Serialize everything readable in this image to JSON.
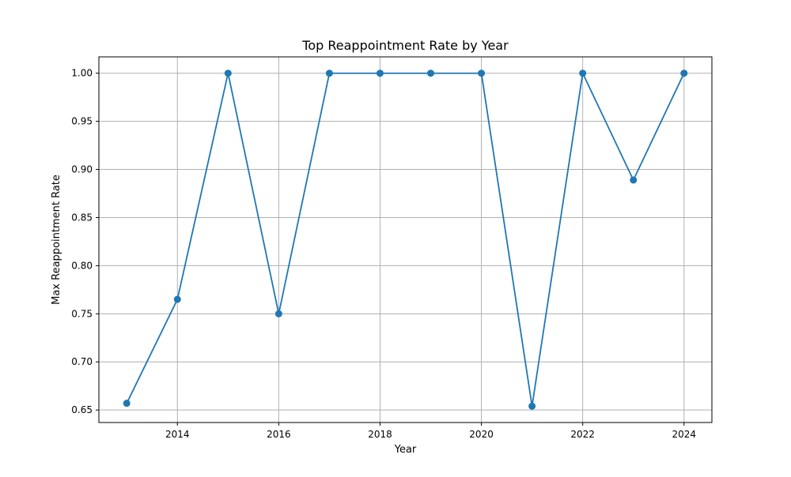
{
  "chart_data": {
    "type": "line",
    "title": "Top Reappointment Rate by Year",
    "xlabel": "Year",
    "ylabel": "Max Reappointment Rate",
    "x": [
      2013,
      2014,
      2015,
      2016,
      2017,
      2018,
      2019,
      2020,
      2021,
      2022,
      2023,
      2024
    ],
    "series": [
      {
        "values": [
          0.657,
          0.765,
          1.0,
          0.75,
          1.0,
          1.0,
          1.0,
          1.0,
          0.654,
          1.0,
          0.889,
          1.0
        ],
        "color": "#1f77b4",
        "marker": "circle"
      }
    ],
    "xlim": [
      2012.45,
      2024.55
    ],
    "ylim": [
      0.637,
      1.017
    ],
    "xticks": [
      2014,
      2016,
      2018,
      2020,
      2022,
      2024
    ],
    "xtick_labels": [
      "2014",
      "2016",
      "2018",
      "2020",
      "2022",
      "2024"
    ],
    "yticks": [
      0.65,
      0.7,
      0.75,
      0.8,
      0.85,
      0.9,
      0.95,
      1.0
    ],
    "ytick_labels": [
      "0.65",
      "0.70",
      "0.75",
      "0.80",
      "0.85",
      "0.90",
      "0.95",
      "1.00"
    ],
    "grid": true,
    "grid_color": "#b0b0b0"
  }
}
